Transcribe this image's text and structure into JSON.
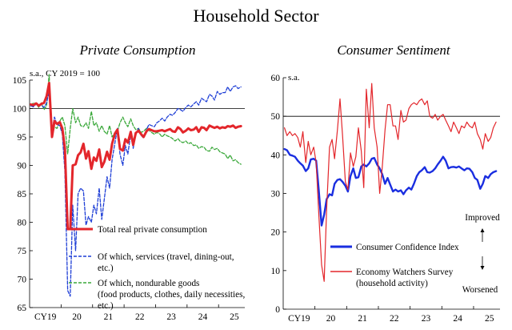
{
  "title": "Household Sector",
  "chart_data": [
    {
      "type": "line",
      "title": "Private Consumption",
      "ylabel": "s.a., CY 2019 = 100",
      "ylim": [
        65,
        105
      ],
      "yticks": [
        65,
        70,
        75,
        80,
        85,
        90,
        95,
        100,
        105
      ],
      "xlim": [
        2019.0,
        2025.833
      ],
      "x_tick_labels": [
        "CY19",
        "20",
        "21",
        "22",
        "23",
        "24",
        "25"
      ],
      "x_tick_positions": [
        2019.5,
        2020.5,
        2021.5,
        2022.5,
        2023.5,
        2024.5,
        2025.5
      ],
      "reference_line": 100,
      "series": [
        {
          "name": "Total real private consumption",
          "color": "#e3262b",
          "style": "solid",
          "x": [
            2019.04,
            2019.12,
            2019.21,
            2019.29,
            2019.37,
            2019.46,
            2019.54,
            2019.62,
            2019.71,
            2019.79,
            2019.87,
            2019.96,
            2020.04,
            2020.12,
            2020.21,
            2020.29,
            2020.37,
            2020.46,
            2020.54,
            2020.62,
            2020.71,
            2020.79,
            2020.87,
            2020.96,
            2021.04,
            2021.12,
            2021.21,
            2021.29,
            2021.37,
            2021.46,
            2021.54,
            2021.62,
            2021.71,
            2021.79,
            2021.87,
            2021.96,
            2022.04,
            2022.12,
            2022.21,
            2022.29,
            2022.37,
            2022.46,
            2022.54,
            2022.62,
            2022.71,
            2022.79,
            2022.87,
            2022.96,
            2023.04,
            2023.12,
            2023.21,
            2023.29,
            2023.37,
            2023.46,
            2023.54,
            2023.62,
            2023.71,
            2023.79,
            2023.87,
            2023.96,
            2024.04,
            2024.12,
            2024.21,
            2024.29,
            2024.37,
            2024.46,
            2024.54,
            2024.62,
            2024.71,
            2024.79,
            2024.87,
            2024.96,
            2025.04,
            2025.12,
            2025.21,
            2025.29,
            2025.37,
            2025.46,
            2025.54,
            2025.62,
            2025.71
          ],
          "values": [
            100.7,
            100.6,
            100.9,
            100.5,
            100.8,
            101.0,
            102.2,
            104.5,
            95.0,
            97.8,
            97.3,
            97.6,
            96.5,
            93.0,
            78.8,
            78.8,
            90.0,
            90.2,
            91.8,
            92.3,
            93.8,
            91.2,
            92.5,
            89.4,
            91.4,
            90.8,
            92.8,
            89.7,
            90.6,
            92.4,
            91.0,
            93.8,
            95.6,
            96.3,
            92.9,
            92.6,
            94.6,
            94.0,
            95.9,
            93.6,
            95.7,
            96.1,
            95.5,
            95.0,
            96.0,
            96.4,
            96.2,
            96.0,
            96.0,
            96.1,
            96.2,
            96.0,
            96.2,
            96.4,
            96.0,
            95.9,
            96.7,
            96.4,
            95.8,
            96.1,
            96.5,
            96.2,
            96.3,
            96.7,
            95.9,
            96.7,
            96.6,
            96.2,
            97.0,
            96.8,
            96.6,
            96.8,
            96.5,
            96.7,
            96.6,
            96.9,
            96.8,
            97.0,
            96.6,
            96.8,
            96.9
          ]
        },
        {
          "name": "Of which, services (travel, dining-out, etc.)",
          "color": "#1f3fd6",
          "style": "dashed",
          "x": [
            2019.04,
            2019.12,
            2019.21,
            2019.29,
            2019.37,
            2019.46,
            2019.54,
            2019.62,
            2019.71,
            2019.79,
            2019.87,
            2019.96,
            2020.04,
            2020.12,
            2020.21,
            2020.29,
            2020.37,
            2020.46,
            2020.54,
            2020.62,
            2020.71,
            2020.79,
            2020.87,
            2020.96,
            2021.04,
            2021.12,
            2021.21,
            2021.29,
            2021.37,
            2021.46,
            2021.54,
            2021.62,
            2021.71,
            2021.79,
            2021.87,
            2021.96,
            2022.04,
            2022.12,
            2022.21,
            2022.29,
            2022.37,
            2022.46,
            2022.54,
            2022.62,
            2022.71,
            2022.79,
            2022.87,
            2022.96,
            2023.04,
            2023.12,
            2023.21,
            2023.29,
            2023.37,
            2023.46,
            2023.54,
            2023.62,
            2023.71,
            2023.79,
            2023.87,
            2023.96,
            2024.04,
            2024.12,
            2024.21,
            2024.29,
            2024.37,
            2024.46,
            2024.54,
            2024.62,
            2024.71,
            2024.79,
            2024.87,
            2024.96,
            2025.04,
            2025.12,
            2025.21,
            2025.29,
            2025.37,
            2025.46,
            2025.54,
            2025.62,
            2025.71
          ],
          "values": [
            100.5,
            100.3,
            100.8,
            100.4,
            100.6,
            100.2,
            101.0,
            103.0,
            96.0,
            98.5,
            97.2,
            97.0,
            95.5,
            89.0,
            68.0,
            67.0,
            83.0,
            75.0,
            85.0,
            86.0,
            85.5,
            79.5,
            81.0,
            80.0,
            83.0,
            81.5,
            86.0,
            80.5,
            84.0,
            88.0,
            86.0,
            91.0,
            94.0,
            96.5,
            92.0,
            90.0,
            93.5,
            92.0,
            95.5,
            93.0,
            95.5,
            96.5,
            95.3,
            94.8,
            96.3,
            97.2,
            97.0,
            96.8,
            97.5,
            97.8,
            98.3,
            97.8,
            98.5,
            99.0,
            98.8,
            99.3,
            100.0,
            99.8,
            99.5,
            100.2,
            100.6,
            100.3,
            100.8,
            101.2,
            100.6,
            101.8,
            101.5,
            101.2,
            102.5,
            102.2,
            101.5,
            103.0,
            102.5,
            102.8,
            102.8,
            103.8,
            103.0,
            103.8,
            104.0,
            103.5,
            103.8
          ]
        },
        {
          "name": "Of which, nondurable goods (food products, clothes, daily necessities, etc.)",
          "color": "#3aa83a",
          "style": "dashed",
          "x": [
            2019.04,
            2019.12,
            2019.21,
            2019.29,
            2019.37,
            2019.46,
            2019.54,
            2019.62,
            2019.71,
            2019.79,
            2019.87,
            2019.96,
            2020.04,
            2020.12,
            2020.21,
            2020.29,
            2020.37,
            2020.46,
            2020.54,
            2020.62,
            2020.71,
            2020.79,
            2020.87,
            2020.96,
            2021.04,
            2021.12,
            2021.21,
            2021.29,
            2021.37,
            2021.46,
            2021.54,
            2021.62,
            2021.71,
            2021.79,
            2021.87,
            2021.96,
            2022.04,
            2022.12,
            2022.21,
            2022.29,
            2022.37,
            2022.46,
            2022.54,
            2022.62,
            2022.71,
            2022.79,
            2022.87,
            2022.96,
            2023.04,
            2023.12,
            2023.21,
            2023.29,
            2023.37,
            2023.46,
            2023.54,
            2023.62,
            2023.71,
            2023.79,
            2023.87,
            2023.96,
            2024.04,
            2024.12,
            2024.21,
            2024.29,
            2024.37,
            2024.46,
            2024.54,
            2024.62,
            2024.71,
            2024.79,
            2024.87,
            2024.96,
            2025.04,
            2025.12,
            2025.21,
            2025.29,
            2025.37,
            2025.46,
            2025.54,
            2025.62,
            2025.71
          ],
          "values": [
            100.5,
            101.0,
            100.8,
            100.2,
            101.0,
            99.8,
            100.5,
            106.0,
            95.0,
            96.8,
            96.5,
            97.8,
            98.5,
            97.0,
            92.0,
            96.5,
            100.0,
            97.5,
            98.5,
            97.0,
            96.8,
            97.5,
            96.5,
            99.5,
            97.0,
            97.5,
            96.0,
            97.0,
            96.0,
            95.5,
            97.0,
            95.0,
            95.8,
            96.0,
            97.5,
            98.5,
            97.5,
            96.8,
            98.2,
            97.0,
            96.3,
            96.5,
            95.8,
            96.0,
            96.5,
            96.2,
            95.8,
            95.5,
            95.8,
            95.6,
            95.0,
            95.5,
            95.2,
            95.0,
            94.7,
            94.3,
            94.7,
            94.2,
            94.0,
            94.3,
            93.8,
            94.0,
            93.5,
            93.6,
            93.0,
            93.3,
            93.2,
            92.6,
            92.5,
            93.2,
            92.8,
            93.0,
            92.4,
            92.2,
            92.0,
            91.2,
            91.8,
            90.8,
            91.0,
            90.5,
            90.2
          ]
        }
      ]
    },
    {
      "type": "line",
      "title": "Consumer Sentiment",
      "ylabel": "s.a.",
      "ylim": [
        0,
        60
      ],
      "yticks": [
        0,
        10,
        20,
        30,
        40,
        50,
        60
      ],
      "xlim": [
        2019.0,
        2025.833
      ],
      "x_tick_labels": [
        "CY19",
        "20",
        "21",
        "22",
        "23",
        "24",
        "25"
      ],
      "x_tick_positions": [
        2019.5,
        2020.5,
        2021.5,
        2022.5,
        2023.5,
        2024.5,
        2025.5
      ],
      "reference_line": 50,
      "annotations": {
        "improved": "Improved",
        "worsened": "Worsened"
      },
      "series": [
        {
          "name": "Consumer Confidence Index",
          "color": "#1a2ee0",
          "style": "solid",
          "x": [
            2019.04,
            2019.12,
            2019.21,
            2019.29,
            2019.37,
            2019.46,
            2019.54,
            2019.62,
            2019.71,
            2019.79,
            2019.87,
            2019.96,
            2020.04,
            2020.12,
            2020.21,
            2020.29,
            2020.37,
            2020.46,
            2020.54,
            2020.62,
            2020.71,
            2020.79,
            2020.87,
            2020.96,
            2021.04,
            2021.12,
            2021.21,
            2021.29,
            2021.37,
            2021.46,
            2021.54,
            2021.62,
            2021.71,
            2021.79,
            2021.87,
            2021.96,
            2022.04,
            2022.12,
            2022.21,
            2022.29,
            2022.37,
            2022.46,
            2022.54,
            2022.62,
            2022.71,
            2022.79,
            2022.87,
            2022.96,
            2023.04,
            2023.12,
            2023.21,
            2023.29,
            2023.37,
            2023.46,
            2023.54,
            2023.62,
            2023.71,
            2023.79,
            2023.87,
            2023.96,
            2024.04,
            2024.12,
            2024.21,
            2024.29,
            2024.37,
            2024.46,
            2024.54,
            2024.62,
            2024.71,
            2024.79,
            2024.87,
            2024.96,
            2025.04,
            2025.12,
            2025.21,
            2025.29,
            2025.37,
            2025.46,
            2025.54,
            2025.62,
            2025.71
          ],
          "values": [
            41.5,
            41.2,
            40.0,
            39.8,
            39.5,
            38.5,
            37.8,
            37.2,
            35.8,
            36.5,
            38.8,
            39.0,
            38.5,
            31.0,
            21.7,
            24.5,
            28.5,
            29.8,
            29.5,
            32.5,
            33.5,
            33.7,
            33.0,
            32.0,
            30.5,
            34.5,
            36.5,
            34.0,
            34.2,
            37.0,
            37.5,
            37.0,
            37.8,
            39.0,
            39.2,
            37.5,
            36.5,
            35.0,
            32.5,
            34.0,
            32.3,
            30.5,
            31.0,
            30.5,
            30.8,
            29.8,
            30.8,
            31.5,
            31.0,
            32.5,
            34.5,
            35.5,
            36.0,
            36.8,
            35.5,
            35.4,
            35.8,
            36.5,
            37.5,
            38.5,
            39.5,
            38.5,
            36.5,
            36.8,
            36.9,
            36.7,
            37.0,
            36.5,
            36.0,
            36.5,
            36.4,
            35.5,
            34.0,
            33.5,
            31.2,
            32.5,
            34.5,
            34.0,
            35.0,
            35.5,
            35.8
          ]
        },
        {
          "name": "Economy Watchers Survey (household activity)",
          "color": "#e3262b",
          "style": "solid",
          "x": [
            2019.04,
            2019.12,
            2019.21,
            2019.29,
            2019.37,
            2019.46,
            2019.54,
            2019.62,
            2019.71,
            2019.79,
            2019.87,
            2019.96,
            2020.04,
            2020.12,
            2020.21,
            2020.29,
            2020.37,
            2020.46,
            2020.54,
            2020.62,
            2020.71,
            2020.79,
            2020.87,
            2020.96,
            2021.04,
            2021.12,
            2021.21,
            2021.29,
            2021.37,
            2021.46,
            2021.54,
            2021.62,
            2021.71,
            2021.79,
            2021.87,
            2021.96,
            2022.04,
            2022.12,
            2022.21,
            2022.29,
            2022.37,
            2022.46,
            2022.54,
            2022.62,
            2022.71,
            2022.79,
            2022.87,
            2022.96,
            2023.04,
            2023.12,
            2023.21,
            2023.29,
            2023.37,
            2023.46,
            2023.54,
            2023.62,
            2023.71,
            2023.79,
            2023.87,
            2023.96,
            2024.04,
            2024.12,
            2024.21,
            2024.29,
            2024.37,
            2024.46,
            2024.54,
            2024.62,
            2024.71,
            2024.79,
            2024.87,
            2024.96,
            2025.04,
            2025.12,
            2025.21,
            2025.29,
            2025.37,
            2025.46,
            2025.54,
            2025.62,
            2025.71
          ],
          "values": [
            47.0,
            45.0,
            46.0,
            45.0,
            45.5,
            44.5,
            42.0,
            46.0,
            38.0,
            43.5,
            40.0,
            42.0,
            38.0,
            25.0,
            11.5,
            7.2,
            26.0,
            42.0,
            44.0,
            39.0,
            46.5,
            54.5,
            45.0,
            33.0,
            31.0,
            40.5,
            37.0,
            39.5,
            47.0,
            41.0,
            31.5,
            57.0,
            47.0,
            58.5,
            47.0,
            42.0,
            30.0,
            36.5,
            46.5,
            53.0,
            53.0,
            47.5,
            47.5,
            44.0,
            51.5,
            48.5,
            49.0,
            52.0,
            53.0,
            53.5,
            53.0,
            54.0,
            54.5,
            53.0,
            54.0,
            50.0,
            49.5,
            50.5,
            49.0,
            50.0,
            50.5,
            49.0,
            47.5,
            46.0,
            48.5,
            47.0,
            45.5,
            47.5,
            47.0,
            48.5,
            47.5,
            47.0,
            48.5,
            45.5,
            44.0,
            41.5,
            45.5,
            43.5,
            44.5,
            47.0,
            48.5
          ]
        }
      ]
    }
  ]
}
